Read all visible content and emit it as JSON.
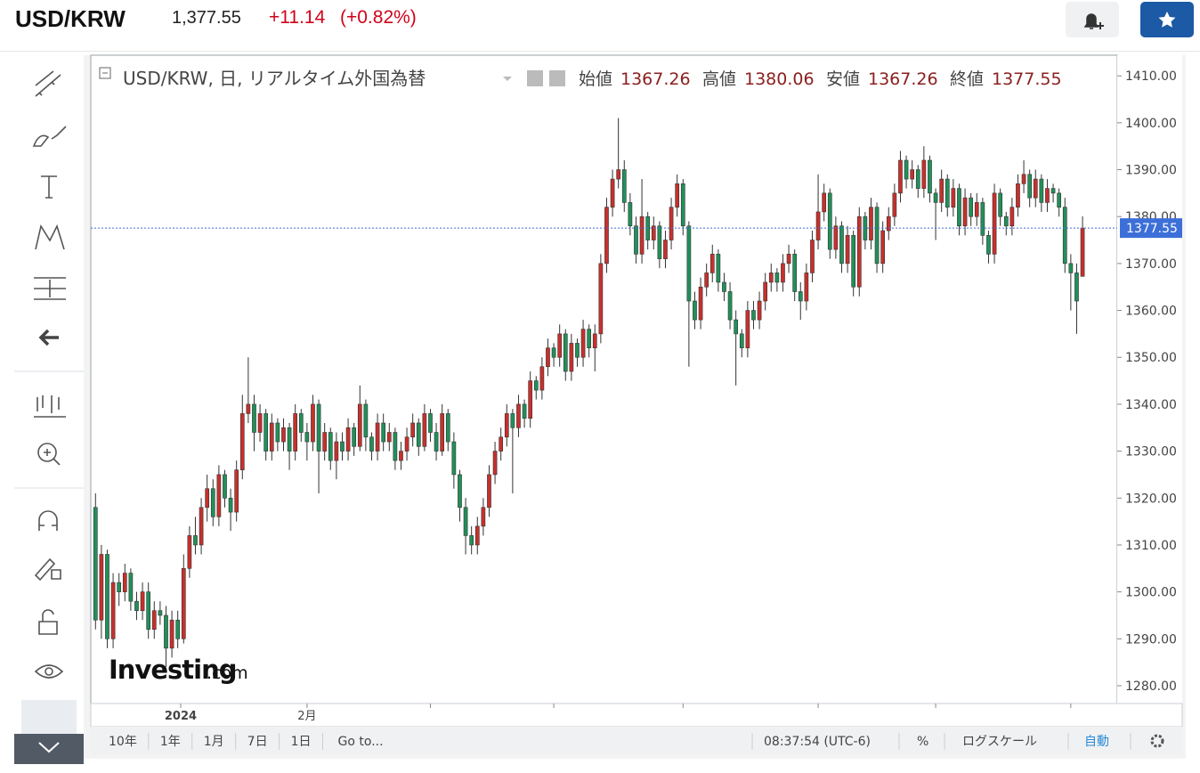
{
  "header": {
    "symbol": "USD/KRW",
    "price": "1,377.55",
    "change": "+11.14",
    "change_pct": "(+0.82%)"
  },
  "legend": {
    "title": "USD/KRW, 日, リアルタイム外国為替",
    "open": "始値",
    "high": "高値",
    "low": "安値",
    "close": "終値"
  },
  "logo": {
    "brand": "Investing",
    "suffix": ".com"
  },
  "bottom_bar": {
    "ranges": [
      "10年",
      "1年",
      "1月",
      "7日",
      "1日"
    ],
    "goto": "Go to...",
    "clock": "08:37:54 (UTC-6)",
    "percent": "%",
    "log": "ログスケール",
    "auto": "自動"
  },
  "chart_data": {
    "type": "candlestick",
    "up_color": "#c8302c",
    "down_color": "#21905a",
    "price_line_color": "#3d6fd8",
    "ylim": [
      1276.2,
      1414.4
    ],
    "xlim": [
      -0.8,
      173.9
    ],
    "yticks": [
      {
        "value": 1280,
        "label": "1280.00"
      },
      {
        "value": 1290,
        "label": "1290.00"
      },
      {
        "value": 1300,
        "label": "1300.00"
      },
      {
        "value": 1310,
        "label": "1310.00"
      },
      {
        "value": 1320,
        "label": "1320.00"
      },
      {
        "value": 1330,
        "label": "1330.00"
      },
      {
        "value": 1340,
        "label": "1340.00"
      },
      {
        "value": 1350,
        "label": "1350.00"
      },
      {
        "value": 1360,
        "label": "1360.00"
      },
      {
        "value": 1370,
        "label": "1370.00"
      },
      {
        "value": 1380,
        "label": "1380.00"
      },
      {
        "value": 1390,
        "label": "1390.00"
      },
      {
        "value": 1400,
        "label": "1400.00"
      },
      {
        "value": 1410,
        "label": "1410.00"
      }
    ],
    "xticks": [
      {
        "value": 14.5,
        "label": "2024"
      },
      {
        "value": 36,
        "label": "2月"
      },
      {
        "value": 57,
        "label": null
      },
      {
        "value": 78,
        "label": null
      },
      {
        "value": 100,
        "label": null
      },
      {
        "value": 123,
        "label": null
      },
      {
        "value": 143,
        "label": null
      },
      {
        "value": 166,
        "label": null
      }
    ],
    "candles": [
      [
        1318,
        1321,
        1292,
        1294
      ],
      [
        1294,
        1310,
        1290,
        1308
      ],
      [
        1308,
        1309,
        1288,
        1290
      ],
      [
        1290,
        1304,
        1288,
        1302
      ],
      [
        1302,
        1304,
        1297,
        1300
      ],
      [
        1300,
        1306,
        1298,
        1304
      ],
      [
        1304,
        1305,
        1296,
        1298
      ],
      [
        1298,
        1300,
        1294,
        1296
      ],
      [
        1296,
        1302,
        1294,
        1300
      ],
      [
        1300,
        1302,
        1290,
        1292
      ],
      [
        1292,
        1298,
        1290,
        1296
      ],
      [
        1296,
        1298,
        1293,
        1295
      ],
      [
        1295,
        1297,
        1284,
        1288
      ],
      [
        1288,
        1296,
        1286,
        1294
      ],
      [
        1294,
        1296,
        1288,
        1290
      ],
      [
        1290,
        1308,
        1289,
        1305
      ],
      [
        1305,
        1314,
        1303,
        1312
      ],
      [
        1312,
        1316,
        1308,
        1310
      ],
      [
        1310,
        1320,
        1308,
        1318
      ],
      [
        1318,
        1325,
        1315,
        1322
      ],
      [
        1322,
        1324,
        1314,
        1316
      ],
      [
        1316,
        1327,
        1314,
        1325
      ],
      [
        1325,
        1326,
        1318,
        1320
      ],
      [
        1320,
        1322,
        1313,
        1317
      ],
      [
        1317,
        1328,
        1315,
        1326
      ],
      [
        1326,
        1342,
        1324,
        1338
      ],
      [
        1338,
        1350,
        1336,
        1340
      ],
      [
        1340,
        1342,
        1330,
        1334
      ],
      [
        1334,
        1340,
        1332,
        1338
      ],
      [
        1338,
        1339,
        1328,
        1330
      ],
      [
        1330,
        1338,
        1328,
        1336
      ],
      [
        1336,
        1337,
        1330,
        1332
      ],
      [
        1332,
        1337,
        1330,
        1335
      ],
      [
        1335,
        1336,
        1326,
        1330
      ],
      [
        1330,
        1340,
        1328,
        1338
      ],
      [
        1338,
        1339,
        1332,
        1334
      ],
      [
        1334,
        1336,
        1328,
        1332
      ],
      [
        1332,
        1342,
        1330,
        1340
      ],
      [
        1340,
        1341,
        1321,
        1330
      ],
      [
        1330,
        1336,
        1328,
        1334
      ],
      [
        1334,
        1335,
        1326,
        1328
      ],
      [
        1328,
        1334,
        1324,
        1332
      ],
      [
        1332,
        1334,
        1328,
        1330
      ],
      [
        1330,
        1337,
        1328,
        1335
      ],
      [
        1335,
        1336,
        1329,
        1331
      ],
      [
        1331,
        1344,
        1330,
        1340
      ],
      [
        1340,
        1341,
        1330,
        1333
      ],
      [
        1333,
        1334,
        1328,
        1330
      ],
      [
        1330,
        1338,
        1328,
        1336
      ],
      [
        1336,
        1338,
        1330,
        1332
      ],
      [
        1332,
        1336,
        1330,
        1334
      ],
      [
        1334,
        1335,
        1326,
        1328
      ],
      [
        1328,
        1332,
        1326,
        1330
      ],
      [
        1330,
        1335,
        1328,
        1333
      ],
      [
        1333,
        1338,
        1331,
        1336
      ],
      [
        1336,
        1337,
        1329,
        1331
      ],
      [
        1331,
        1340,
        1330,
        1338
      ],
      [
        1338,
        1339,
        1332,
        1334
      ],
      [
        1334,
        1336,
        1328,
        1330
      ],
      [
        1330,
        1340,
        1329,
        1338
      ],
      [
        1338,
        1339,
        1330,
        1332
      ],
      [
        1332,
        1334,
        1322,
        1325
      ],
      [
        1325,
        1326,
        1315,
        1318
      ],
      [
        1318,
        1320,
        1308,
        1312
      ],
      [
        1312,
        1314,
        1308,
        1310
      ],
      [
        1310,
        1316,
        1308,
        1314
      ],
      [
        1314,
        1320,
        1312,
        1318
      ],
      [
        1318,
        1327,
        1316,
        1325
      ],
      [
        1325,
        1332,
        1323,
        1330
      ],
      [
        1330,
        1335,
        1328,
        1333
      ],
      [
        1333,
        1340,
        1331,
        1338
      ],
      [
        1338,
        1339,
        1321,
        1335
      ],
      [
        1335,
        1342,
        1333,
        1340
      ],
      [
        1340,
        1341,
        1335,
        1337
      ],
      [
        1337,
        1347,
        1335,
        1345
      ],
      [
        1345,
        1346,
        1341,
        1343
      ],
      [
        1343,
        1350,
        1341,
        1348
      ],
      [
        1348,
        1354,
        1346,
        1352
      ],
      [
        1352,
        1353,
        1348,
        1350
      ],
      [
        1350,
        1357,
        1348,
        1355
      ],
      [
        1355,
        1356,
        1345,
        1347
      ],
      [
        1347,
        1355,
        1345,
        1353
      ],
      [
        1353,
        1354,
        1348,
        1350
      ],
      [
        1350,
        1358,
        1348,
        1356
      ],
      [
        1356,
        1357,
        1350,
        1352
      ],
      [
        1352,
        1357,
        1347,
        1355
      ],
      [
        1355,
        1372,
        1353,
        1370
      ],
      [
        1370,
        1384,
        1368,
        1382
      ],
      [
        1382,
        1390,
        1380,
        1388
      ],
      [
        1388,
        1401,
        1386,
        1390
      ],
      [
        1390,
        1392,
        1381,
        1383
      ],
      [
        1383,
        1385,
        1376,
        1378
      ],
      [
        1378,
        1380,
        1370,
        1372
      ],
      [
        1372,
        1388,
        1370,
        1380
      ],
      [
        1380,
        1381,
        1373,
        1375
      ],
      [
        1375,
        1380,
        1373,
        1378
      ],
      [
        1378,
        1379,
        1369,
        1371
      ],
      [
        1371,
        1377,
        1369,
        1375
      ],
      [
        1375,
        1384,
        1373,
        1382
      ],
      [
        1382,
        1389,
        1380,
        1387
      ],
      [
        1387,
        1388,
        1376,
        1378
      ],
      [
        1378,
        1379,
        1348,
        1362
      ],
      [
        1362,
        1364,
        1356,
        1358
      ],
      [
        1358,
        1367,
        1356,
        1365
      ],
      [
        1365,
        1370,
        1363,
        1368
      ],
      [
        1368,
        1374,
        1366,
        1372
      ],
      [
        1372,
        1373,
        1364,
        1366
      ],
      [
        1366,
        1368,
        1362,
        1364
      ],
      [
        1364,
        1366,
        1356,
        1358
      ],
      [
        1358,
        1360,
        1344,
        1355
      ],
      [
        1355,
        1356,
        1350,
        1352
      ],
      [
        1352,
        1362,
        1350,
        1360
      ],
      [
        1360,
        1362,
        1356,
        1358
      ],
      [
        1358,
        1364,
        1356,
        1362
      ],
      [
        1362,
        1368,
        1360,
        1366
      ],
      [
        1366,
        1370,
        1364,
        1368
      ],
      [
        1368,
        1369,
        1364,
        1366
      ],
      [
        1366,
        1372,
        1364,
        1370
      ],
      [
        1370,
        1374,
        1368,
        1372
      ],
      [
        1372,
        1373,
        1362,
        1364
      ],
      [
        1364,
        1366,
        1358,
        1362
      ],
      [
        1362,
        1370,
        1360,
        1368
      ],
      [
        1368,
        1377,
        1366,
        1375
      ],
      [
        1375,
        1389,
        1373,
        1381
      ],
      [
        1381,
        1387,
        1379,
        1385
      ],
      [
        1385,
        1386,
        1371,
        1373
      ],
      [
        1373,
        1380,
        1371,
        1378
      ],
      [
        1378,
        1379,
        1368,
        1370
      ],
      [
        1370,
        1378,
        1368,
        1376
      ],
      [
        1376,
        1377,
        1363,
        1365
      ],
      [
        1365,
        1382,
        1363,
        1380
      ],
      [
        1380,
        1381,
        1373,
        1375
      ],
      [
        1375,
        1384,
        1373,
        1382
      ],
      [
        1382,
        1383,
        1368,
        1370
      ],
      [
        1370,
        1379,
        1368,
        1377
      ],
      [
        1377,
        1382,
        1375,
        1380
      ],
      [
        1380,
        1387,
        1378,
        1385
      ],
      [
        1385,
        1394,
        1383,
        1392
      ],
      [
        1392,
        1393,
        1386,
        1388
      ],
      [
        1388,
        1392,
        1386,
        1390
      ],
      [
        1390,
        1391,
        1384,
        1386
      ],
      [
        1386,
        1395,
        1384,
        1392
      ],
      [
        1392,
        1393,
        1383,
        1385
      ],
      [
        1385,
        1386,
        1375,
        1383
      ],
      [
        1383,
        1390,
        1381,
        1388
      ],
      [
        1388,
        1389,
        1380,
        1382
      ],
      [
        1382,
        1388,
        1380,
        1386
      ],
      [
        1386,
        1387,
        1376,
        1378
      ],
      [
        1378,
        1386,
        1376,
        1384
      ],
      [
        1384,
        1385,
        1378,
        1380
      ],
      [
        1380,
        1385,
        1378,
        1383
      ],
      [
        1383,
        1384,
        1374,
        1376
      ],
      [
        1376,
        1377,
        1370,
        1372
      ],
      [
        1372,
        1387,
        1370,
        1385
      ],
      [
        1385,
        1386,
        1378,
        1380
      ],
      [
        1380,
        1381,
        1376,
        1378
      ],
      [
        1378,
        1384,
        1376,
        1382
      ],
      [
        1382,
        1389,
        1380,
        1387
      ],
      [
        1387,
        1392,
        1385,
        1389
      ],
      [
        1389,
        1390,
        1382,
        1384
      ],
      [
        1384,
        1390,
        1382,
        1388
      ],
      [
        1388,
        1389,
        1381,
        1383
      ],
      [
        1383,
        1388,
        1381,
        1386
      ],
      [
        1386,
        1387,
        1383,
        1385
      ],
      [
        1385,
        1386,
        1380,
        1382
      ],
      [
        1382,
        1384,
        1368,
        1370
      ],
      [
        1370,
        1372,
        1360,
        1368
      ],
      [
        1368,
        1370,
        1355,
        1362
      ],
      [
        1367.26,
        1380.06,
        1367.26,
        1377.55
      ]
    ]
  }
}
